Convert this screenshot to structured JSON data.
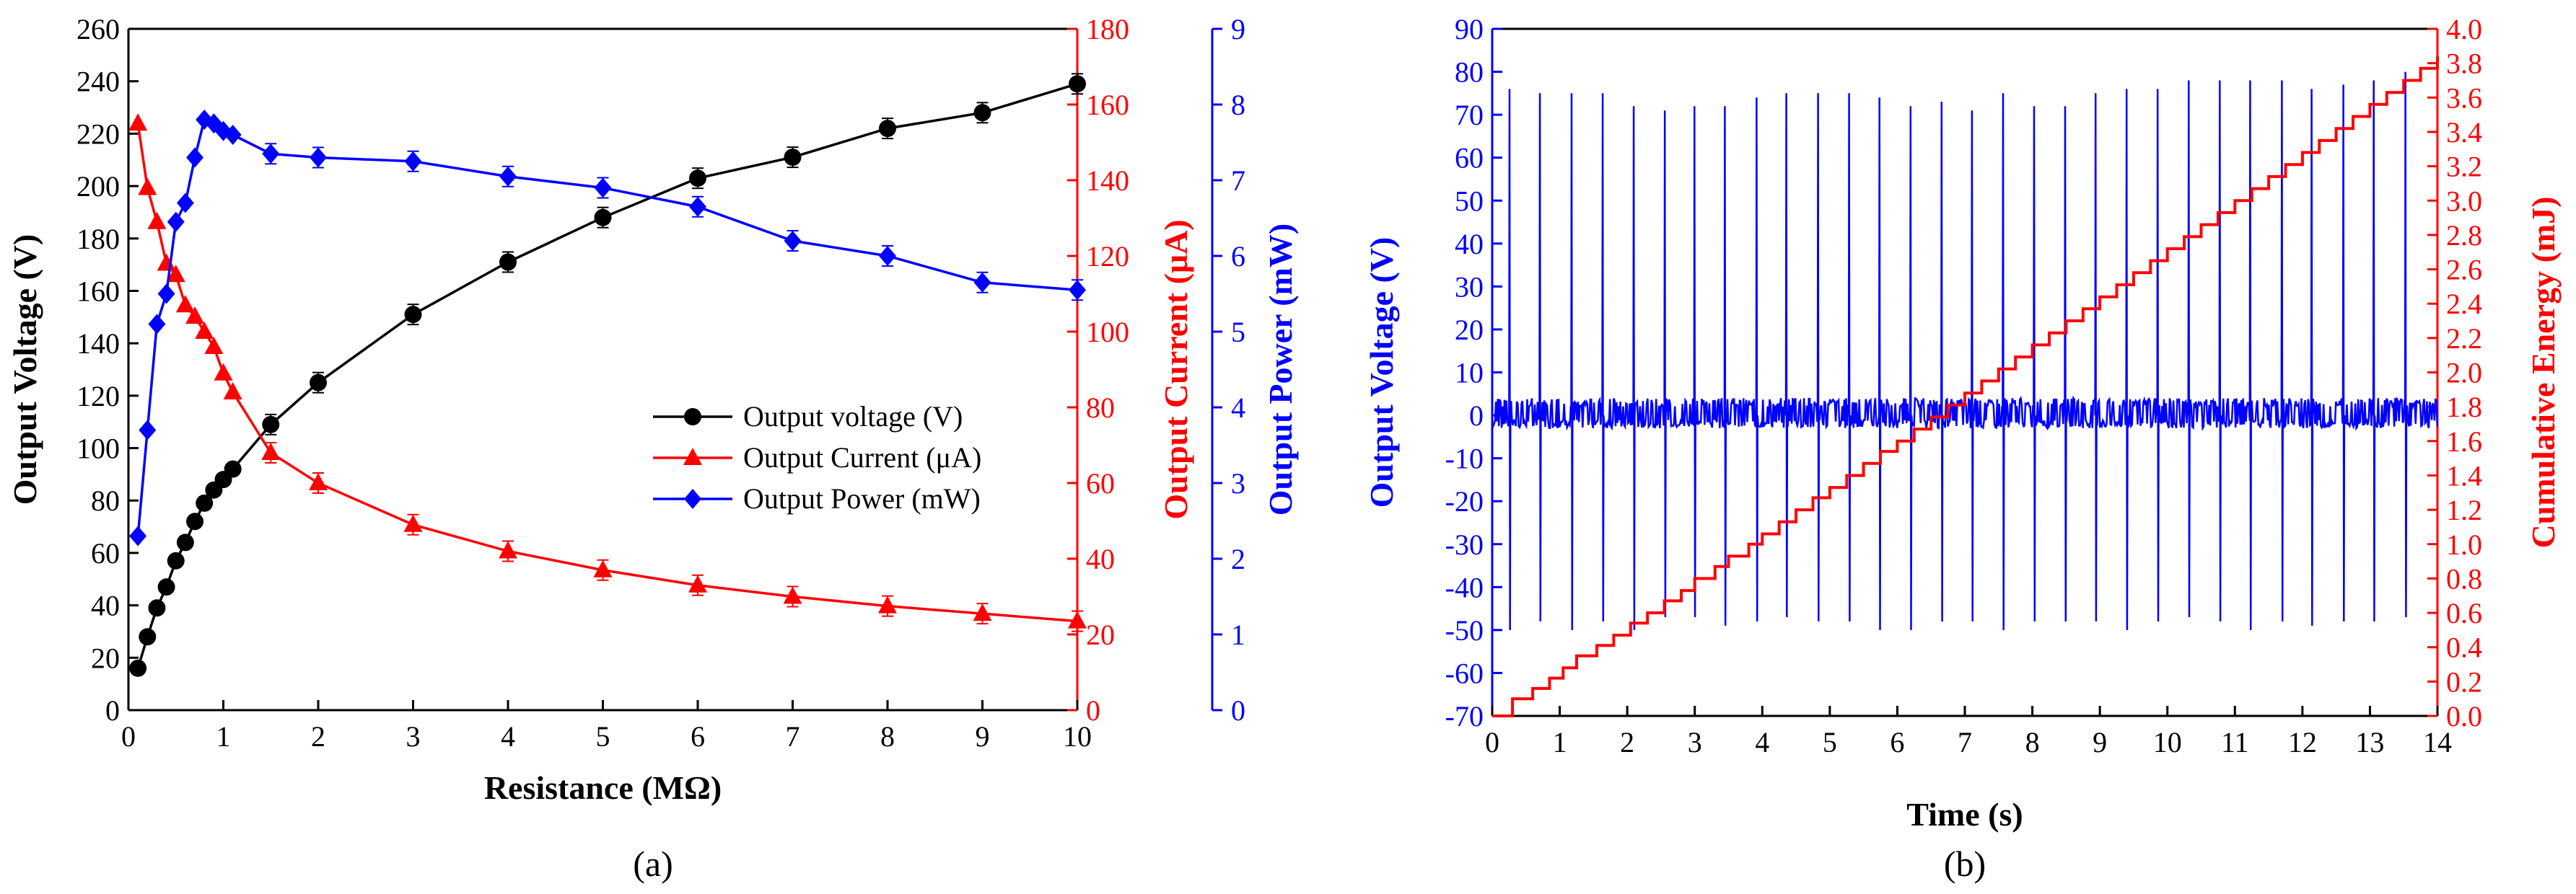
{
  "panel_labels": {
    "a": "(a)",
    "b": "(b)"
  },
  "chart_data": [
    {
      "type": "line",
      "panel": "a",
      "xlabel": "Resistance (MΩ)",
      "xlim": [
        0,
        10
      ],
      "xticks": [
        0,
        1,
        2,
        3,
        4,
        5,
        6,
        7,
        8,
        9,
        10
      ],
      "y_axes": [
        {
          "id": "voltage",
          "label": "Output Voltage (V)",
          "lim": [
            0,
            260
          ],
          "ticks": [
            0,
            20,
            40,
            60,
            80,
            100,
            120,
            140,
            160,
            180,
            200,
            220,
            240,
            260
          ],
          "color": "#000000",
          "side": "left"
        },
        {
          "id": "current",
          "label": "Output Current (μA)",
          "lim": [
            0,
            180
          ],
          "ticks": [
            0,
            20,
            40,
            60,
            80,
            100,
            120,
            140,
            160,
            180
          ],
          "color": "#ff0000",
          "side": "right"
        },
        {
          "id": "power",
          "label": "Output Power (mW)",
          "lim": [
            0,
            9
          ],
          "ticks": [
            0,
            1,
            2,
            3,
            4,
            5,
            6,
            7,
            8,
            9
          ],
          "color": "#0000ff",
          "side": "right-outer"
        }
      ],
      "legend_position": "center-right",
      "series": [
        {
          "name": "Output voltage (V)",
          "axis": "voltage",
          "color": "#000000",
          "marker": "circle",
          "x": [
            0.1,
            0.2,
            0.3,
            0.4,
            0.5,
            0.6,
            0.7,
            0.8,
            0.9,
            1,
            1.1,
            1.5,
            2,
            3,
            4,
            5,
            6,
            7,
            8,
            9,
            10
          ],
          "y": [
            16,
            28,
            39,
            47,
            57,
            64,
            72,
            79,
            84,
            88,
            92,
            109,
            125,
            151,
            171,
            188,
            203,
            211,
            222,
            228,
            239
          ]
        },
        {
          "name": "Output Current (μA)",
          "axis": "current",
          "color": "#ff0000",
          "marker": "triangle",
          "x": [
            0.1,
            0.2,
            0.3,
            0.4,
            0.5,
            0.6,
            0.7,
            0.8,
            0.9,
            1,
            1.1,
            1.5,
            2,
            3,
            4,
            5,
            6,
            7,
            8,
            9,
            10
          ],
          "y": [
            155,
            138,
            129,
            118,
            115,
            107,
            104,
            100,
            96,
            89,
            84,
            68,
            60,
            49,
            42,
            37,
            33,
            30,
            27.5,
            25.5,
            23.5
          ]
        },
        {
          "name": "Output Power (mW)",
          "axis": "power",
          "color": "#0000ff",
          "marker": "diamond",
          "x": [
            0.1,
            0.2,
            0.3,
            0.4,
            0.5,
            0.6,
            0.7,
            0.8,
            0.9,
            1,
            1.1,
            1.5,
            2,
            3,
            4,
            5,
            6,
            7,
            8,
            9,
            10
          ],
          "y": [
            2.3,
            3.7,
            5.1,
            5.5,
            6.45,
            6.7,
            7.3,
            7.8,
            7.75,
            7.65,
            7.6,
            7.35,
            7.3,
            7.25,
            7.05,
            6.9,
            6.65,
            6.2,
            6.0,
            5.65,
            5.55
          ]
        }
      ]
    },
    {
      "type": "line",
      "panel": "b",
      "xlabel": "Time (s)",
      "xlim": [
        0,
        14
      ],
      "xticks": [
        0,
        1,
        2,
        3,
        4,
        5,
        6,
        7,
        8,
        9,
        10,
        11,
        12,
        13,
        14
      ],
      "y_axes": [
        {
          "id": "voltage",
          "label": "Output Voltage (V)",
          "lim": [
            -70,
            90
          ],
          "ticks": [
            -70,
            -60,
            -50,
            -40,
            -30,
            -20,
            -10,
            0,
            10,
            20,
            30,
            40,
            50,
            60,
            70,
            80,
            90
          ],
          "color": "#0000ff",
          "side": "left"
        },
        {
          "id": "energy",
          "label": "Cumulative Energy (mJ)",
          "lim": [
            0,
            4.0
          ],
          "ticks": [
            "0.0",
            "0.2",
            "0.4",
            "0.6",
            "0.8",
            "1.0",
            "1.2",
            "1.4",
            "1.6",
            "1.8",
            "2.0",
            "2.2",
            "2.4",
            "2.6",
            "2.8",
            "3.0",
            "3.2",
            "3.4",
            "3.6",
            "3.8",
            "4.0"
          ],
          "color": "#ff0000",
          "side": "right"
        }
      ],
      "series": [
        {
          "name": "Output Voltage (V)",
          "axis": "voltage",
          "color": "#0000ff",
          "kind": "pulses",
          "pulse_times": [
            0.25,
            0.7,
            1.17,
            1.63,
            2.09,
            2.55,
            2.99,
            3.44,
            3.91,
            4.35,
            4.82,
            5.28,
            5.73,
            6.19,
            6.65,
            7.1,
            7.56,
            8.02,
            8.48,
            8.93,
            9.39,
            9.85,
            10.31,
            10.77,
            11.22,
            11.69,
            12.13,
            12.6,
            13.05,
            13.52
          ],
          "pulse_peaks": [
            76,
            75,
            75,
            75,
            72,
            71,
            72,
            72,
            74,
            75,
            75,
            75,
            74,
            72,
            73,
            71,
            75,
            72,
            72,
            75,
            76,
            76,
            78,
            78,
            78,
            78,
            76,
            77,
            78,
            80
          ],
          "pulse_troughs": [
            -50,
            -48,
            -50,
            -48,
            -50,
            -47,
            -47,
            -49,
            -48,
            -47,
            -48,
            -48,
            -50,
            -50,
            -48,
            -48,
            -50,
            -48,
            -48,
            -48,
            -50,
            -48,
            -47,
            -48,
            -50,
            -48,
            -49,
            -48,
            -48,
            -47
          ],
          "baseline_noise": [
            -3,
            4
          ]
        },
        {
          "name": "Cumulative Energy (mJ)",
          "axis": "energy",
          "color": "#ff0000",
          "kind": "step",
          "x": [
            0,
            0.3,
            0.6,
            0.85,
            1.05,
            1.25,
            1.55,
            1.8,
            2.05,
            2.3,
            2.55,
            2.8,
            3.0,
            3.3,
            3.5,
            3.8,
            4.0,
            4.25,
            4.5,
            4.75,
            5.0,
            5.25,
            5.5,
            5.75,
            6.0,
            6.25,
            6.5,
            6.75,
            7.0,
            7.25,
            7.5,
            7.75,
            8.0,
            8.25,
            8.5,
            8.75,
            9.0,
            9.25,
            9.5,
            9.75,
            10.0,
            10.25,
            10.5,
            10.75,
            11.0,
            11.25,
            11.5,
            11.75,
            12.0,
            12.25,
            12.5,
            12.75,
            13.0,
            13.25,
            13.5,
            13.75,
            14.0
          ],
          "y": [
            0.0,
            0.1,
            0.16,
            0.22,
            0.28,
            0.35,
            0.41,
            0.47,
            0.54,
            0.6,
            0.67,
            0.73,
            0.8,
            0.87,
            0.93,
            1.0,
            1.06,
            1.13,
            1.2,
            1.27,
            1.33,
            1.4,
            1.47,
            1.54,
            1.6,
            1.67,
            1.74,
            1.81,
            1.88,
            1.95,
            2.02,
            2.09,
            2.16,
            2.23,
            2.3,
            2.37,
            2.44,
            2.51,
            2.58,
            2.65,
            2.72,
            2.79,
            2.86,
            2.93,
            3.0,
            3.07,
            3.14,
            3.21,
            3.28,
            3.35,
            3.42,
            3.49,
            3.56,
            3.63,
            3.7,
            3.77,
            3.84
          ]
        }
      ]
    }
  ]
}
